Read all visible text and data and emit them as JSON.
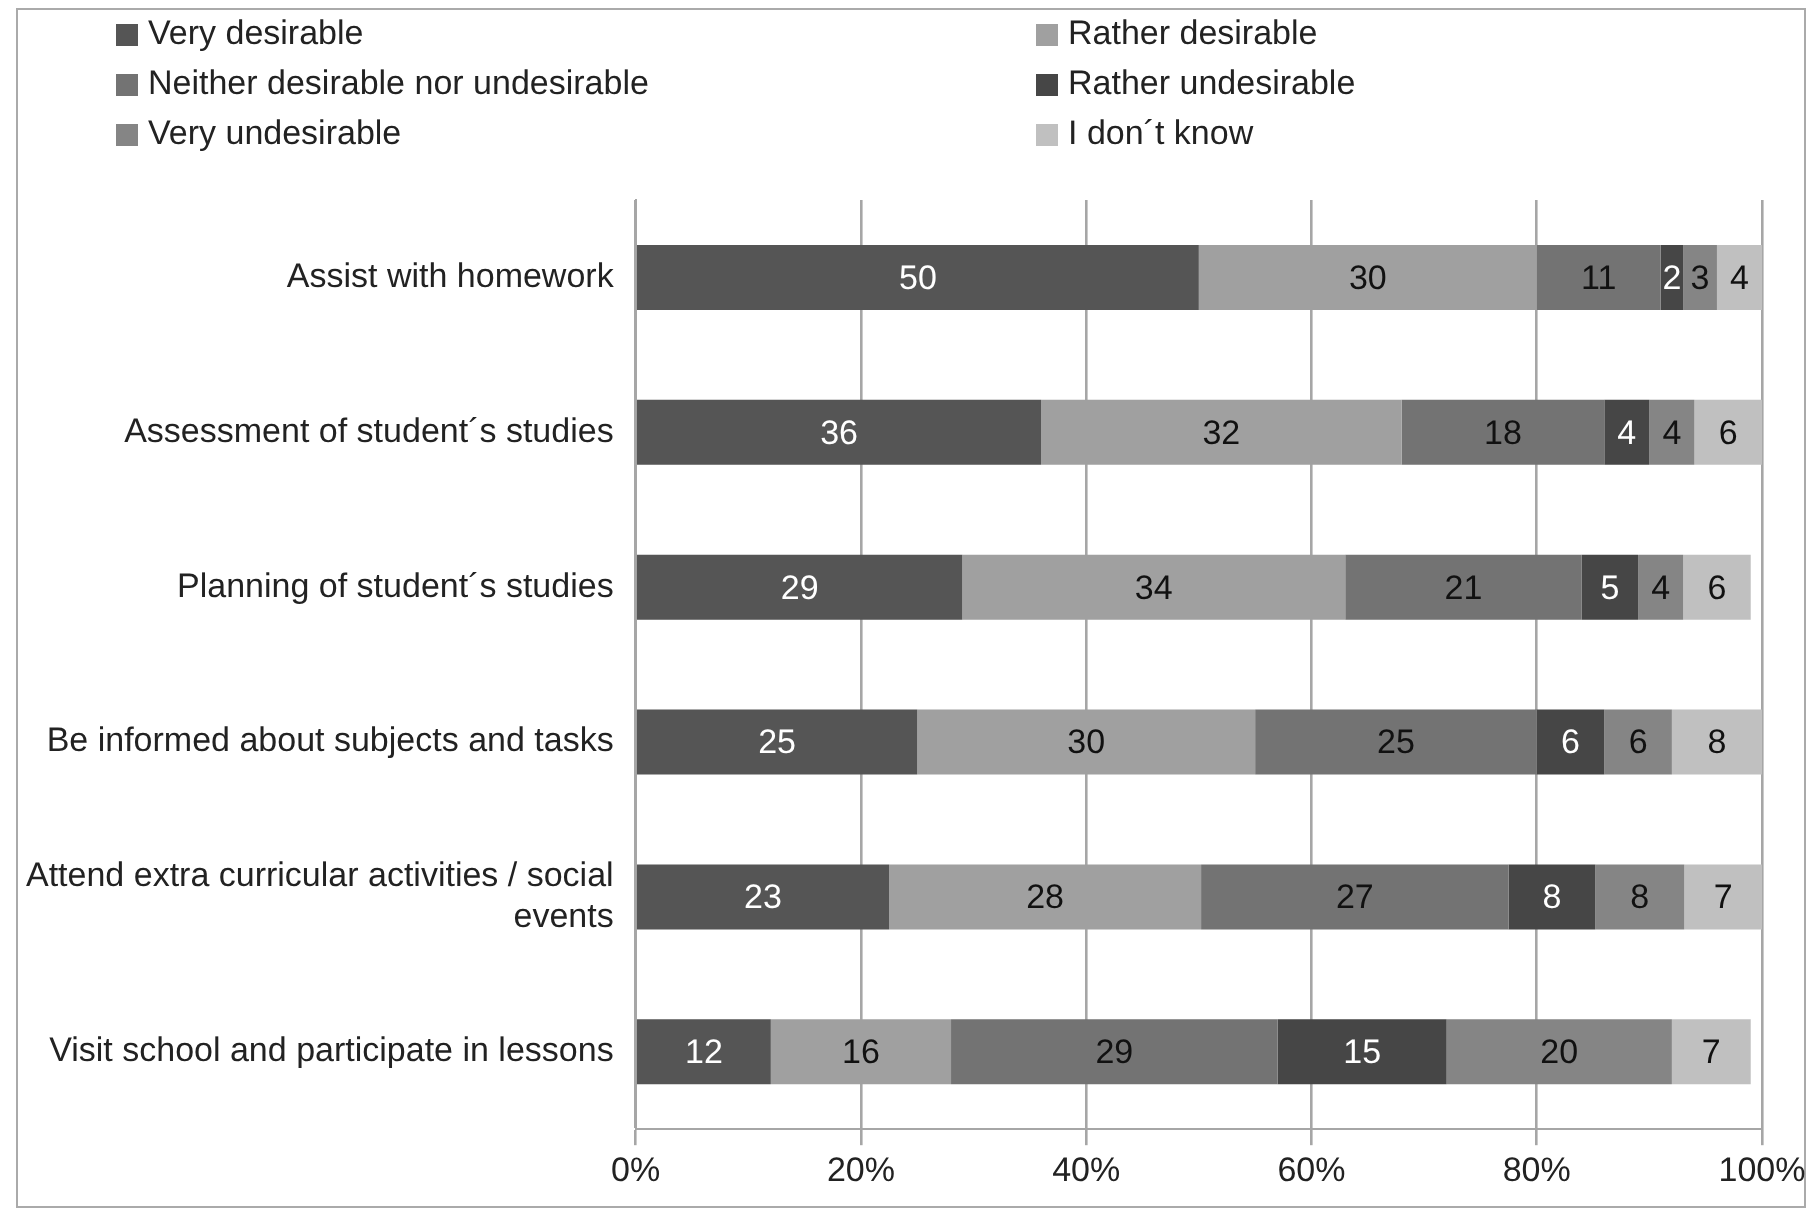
{
  "chart_data": {
    "type": "bar",
    "orientation": "horizontal",
    "stacked": true,
    "legend": "top",
    "grid": "x",
    "categories": [
      "Assist with homework",
      "Assessment of student´s studies",
      "Planning of student´s studies",
      "Be informed about subjects and tasks",
      "Attend extra curricular activities / social events",
      "Visit school and participate in lessons"
    ],
    "series": [
      {
        "name": "Very desirable",
        "color": "#555555",
        "values": [
          50,
          36,
          29,
          25,
          22.5,
          12
        ],
        "value_labels": [
          "50",
          "36",
          "29",
          "25",
          "23",
          "12"
        ]
      },
      {
        "name": "Rather desirable",
        "color": "#a0a0a0",
        "values": [
          30,
          32,
          34,
          30,
          27.7,
          16
        ],
        "value_labels": [
          "30",
          "32",
          "34",
          "30",
          "28",
          "16"
        ]
      },
      {
        "name": "Neither desirable nor undesirable",
        "color": "#737373",
        "values": [
          11,
          18,
          21,
          25,
          27.3,
          29
        ],
        "value_labels": [
          "11",
          "18",
          "21",
          "25",
          "27",
          "29"
        ]
      },
      {
        "name": "Rather undesirable",
        "color": "#464646",
        "values": [
          2,
          4,
          5,
          6,
          7.7,
          15
        ],
        "value_labels": [
          "2",
          "4",
          "5",
          "6",
          "8",
          "15"
        ]
      },
      {
        "name": "Very undesirable",
        "color": "#858585",
        "values": [
          3,
          4,
          4,
          6,
          7.9,
          20
        ],
        "value_labels": [
          "3",
          "4",
          "4",
          "6",
          "8",
          "20"
        ]
      },
      {
        "name": "I don´t know",
        "color": "#c0c0c0",
        "values": [
          4,
          6,
          6,
          8,
          6.9,
          7
        ],
        "value_labels": [
          "4",
          "6",
          "6",
          "8",
          "7",
          "7"
        ]
      }
    ],
    "xlim": [
      0,
      100
    ],
    "xticks": [
      {
        "value": 0,
        "label": "0%"
      },
      {
        "value": 20,
        "label": "20%"
      },
      {
        "value": 40,
        "label": "40%"
      },
      {
        "value": 60,
        "label": "60%"
      },
      {
        "value": 80,
        "label": "80%"
      },
      {
        "value": 100,
        "label": "100%"
      }
    ]
  }
}
